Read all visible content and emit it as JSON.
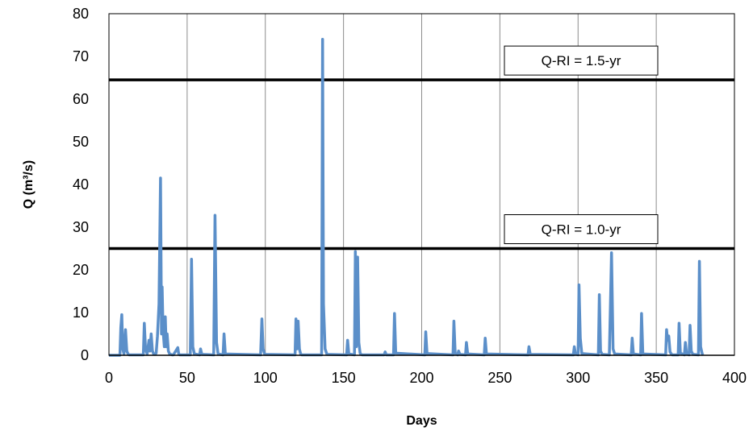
{
  "chart_data": {
    "type": "line",
    "xlabel": "Days",
    "ylabel": "Q (m³/s)",
    "xlim": [
      0,
      400
    ],
    "ylim": [
      0,
      80
    ],
    "xticks": [
      0,
      50,
      100,
      150,
      200,
      250,
      300,
      350,
      400
    ],
    "yticks": [
      0,
      10,
      20,
      30,
      40,
      50,
      60,
      70,
      80
    ],
    "grid": "vertical",
    "series_color": "#5b8fc9",
    "threshold_color": "#000000",
    "series": [
      {
        "x": [
          0,
          7,
          7.6,
          8.2,
          8.8,
          9.6,
          10.6,
          11.4,
          12.2,
          13,
          22,
          22.6,
          23.4,
          24.4,
          25.6,
          26.2,
          27,
          27.8,
          28.6,
          29.4,
          30.2,
          31,
          32,
          33,
          33.6,
          34,
          34.6,
          35.4,
          36,
          36.6,
          37.2,
          38,
          38.8,
          39.6,
          40.4,
          41.2,
          44,
          44.6,
          45.4,
          52,
          52.8,
          53.6,
          54.6,
          58,
          58.6,
          59.4,
          67,
          67.8,
          68.8,
          69.8,
          73,
          73.6,
          74.4,
          97,
          97.8,
          98.6,
          99.6,
          119,
          119.6,
          120.2,
          121,
          121.8,
          122.6,
          123.4,
          136,
          136.6,
          137.2,
          138.2,
          139.4,
          152,
          152.6,
          153.4,
          157,
          157.6,
          158.2,
          159,
          159.8,
          160.6,
          161.2,
          162,
          163,
          176,
          176.6,
          177.4,
          182,
          182.6,
          183.4,
          202,
          202.6,
          203.4,
          220,
          220.6,
          221.4,
          223,
          223.6,
          224.4,
          228,
          228.6,
          229.4,
          240,
          240.6,
          241.4,
          268,
          268.6,
          269.4,
          297,
          297.6,
          298.4,
          300,
          300.6,
          301.4,
          302.4,
          313,
          313.6,
          314.4,
          315.4,
          320,
          320.6,
          321.4,
          322.4,
          323.4,
          334,
          334.6,
          335.4,
          340,
          340.6,
          341.4,
          356,
          356.6,
          357.2,
          358,
          358.8,
          359.6,
          360.4,
          364,
          364.6,
          365.4,
          368,
          368.6,
          369.4,
          371,
          371.6,
          372.4,
          373.4,
          377,
          377.6,
          378.4,
          379.4,
          380
        ],
        "y": [
          0,
          0,
          6.5,
          9.5,
          1.5,
          0.3,
          6,
          1,
          0.3,
          0.1,
          0.1,
          7.5,
          1.5,
          0.3,
          3.5,
          1,
          5,
          1,
          0.3,
          0.2,
          0.5,
          4.5,
          12,
          41.5,
          5,
          16,
          6,
          2,
          9,
          2,
          5,
          1,
          0.3,
          0.2,
          0.1,
          0.1,
          1.8,
          0.3,
          0.1,
          0.1,
          22.5,
          2,
          0.3,
          0.1,
          1.5,
          0.2,
          0.1,
          32.8,
          3,
          0.3,
          0.1,
          5,
          0.3,
          0.1,
          8.5,
          1.5,
          0.2,
          0.1,
          8.5,
          1.5,
          8,
          1.5,
          0.3,
          0.1,
          0.1,
          74,
          12,
          1.5,
          0.2,
          0.1,
          3.5,
          0.3,
          0.1,
          24.3,
          2,
          23,
          3,
          0.5,
          0.2,
          0.1,
          0.1,
          0.1,
          0.8,
          0.1,
          0.1,
          9.8,
          0.5,
          0.1,
          5.5,
          0.4,
          0.1,
          8,
          0.5,
          0.1,
          1,
          0.2,
          0.1,
          3,
          0.3,
          0.1,
          4,
          0.3,
          0.1,
          2,
          0.2,
          0.1,
          2,
          0.3,
          0.1,
          16.5,
          4,
          0.4,
          0.1,
          14.2,
          1,
          0.2,
          0.1,
          10.5,
          24,
          1.5,
          0.3,
          0.1,
          4,
          0.3,
          0.1,
          9.8,
          0.3,
          0.1,
          6,
          3.5,
          4.5,
          0.8,
          0.3,
          0.1,
          0.1,
          7.5,
          0.5,
          0.1,
          3,
          0.3,
          0.1,
          7,
          1,
          0.2,
          0.1,
          22,
          2,
          0.3,
          0.1
        ]
      }
    ],
    "thresholds": [
      {
        "y": 64.5,
        "label": "Q-RI = 1.5-yr"
      },
      {
        "y": 25.0,
        "label": "Q-RI = 1.0-yr"
      }
    ]
  }
}
